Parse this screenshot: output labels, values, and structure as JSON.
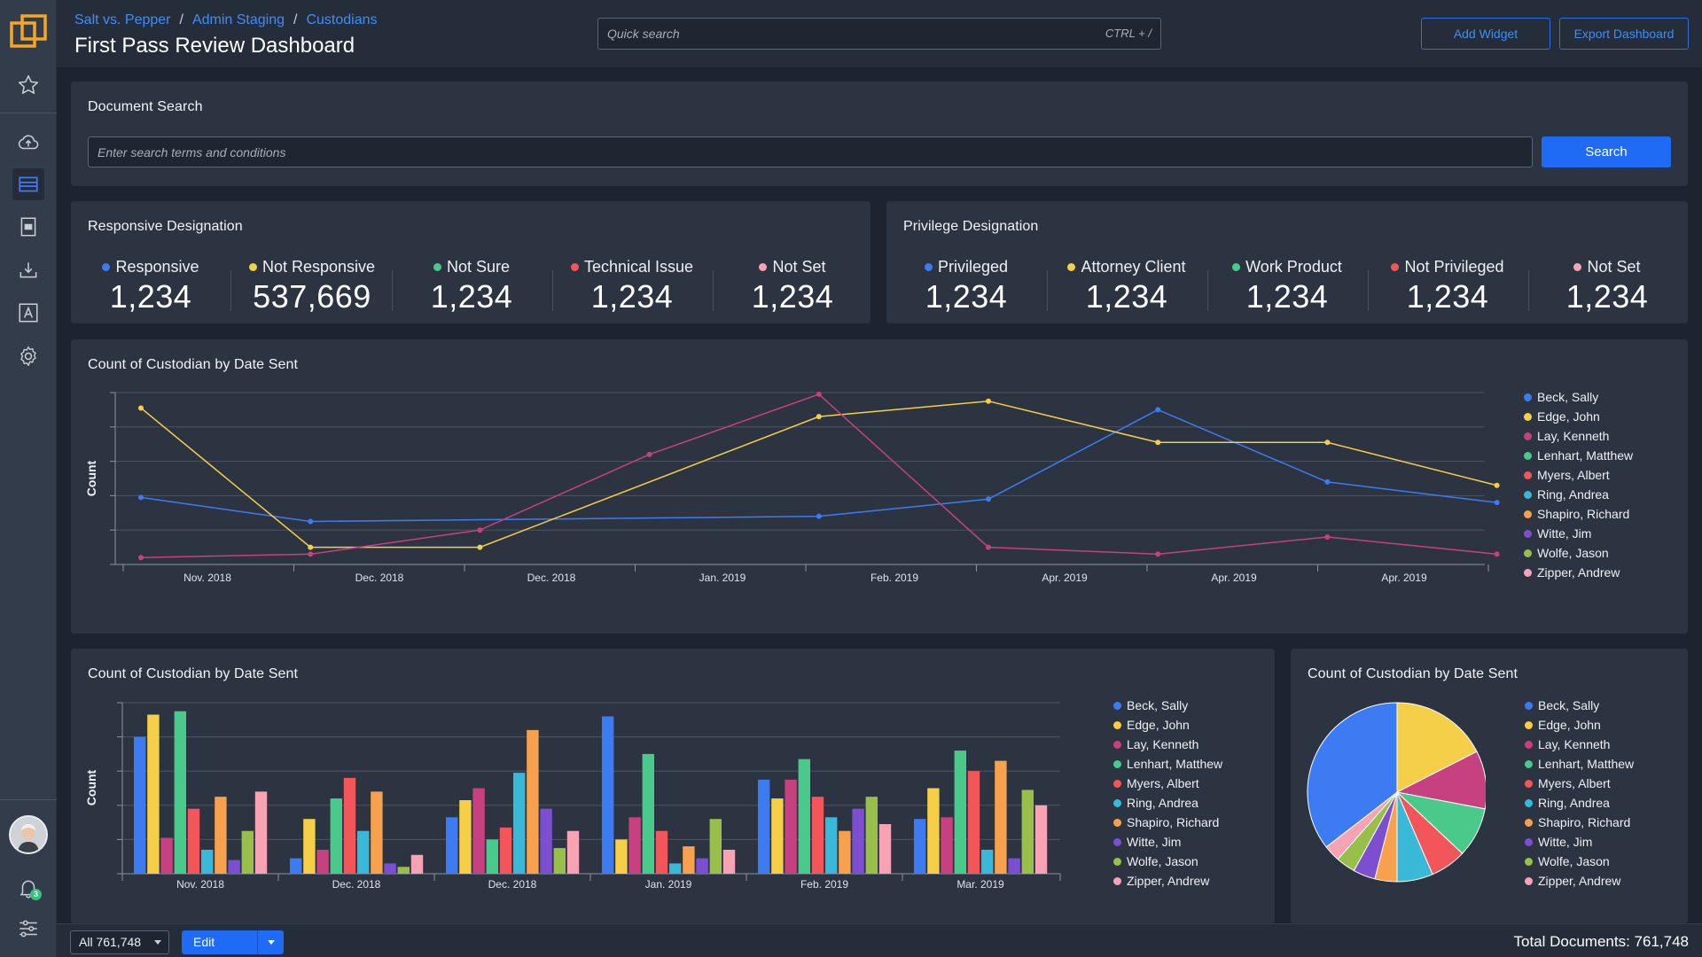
{
  "header": {
    "breadcrumb": [
      "Salt vs. Pepper",
      "Admin Staging",
      "Custodians"
    ],
    "title": "First Pass Review Dashboard",
    "quick_search_placeholder": "Quick search",
    "quick_search_shortcut": "CTRL + /",
    "add_widget_label": "Add Widget",
    "export_label": "Export Dashboard"
  },
  "document_search": {
    "title": "Document Search",
    "placeholder": "Enter search terms and conditions",
    "button_label": "Search"
  },
  "responsive": {
    "title": "Responsive Designation",
    "stats": [
      {
        "label": "Responsive",
        "value": "1,234",
        "color": "#3d7bf2"
      },
      {
        "label": "Not Responsive",
        "value": "537,669",
        "color": "#f5cf48"
      },
      {
        "label": "Not Sure",
        "value": "1,234",
        "color": "#49c98a"
      },
      {
        "label": "Technical Issue",
        "value": "1,234",
        "color": "#f2565a"
      },
      {
        "label": "Not Set",
        "value": "1,234",
        "color": "#f7a3b3"
      }
    ]
  },
  "privilege": {
    "title": "Privilege Designation",
    "stats": [
      {
        "label": "Privileged",
        "value": "1,234",
        "color": "#3d7bf2"
      },
      {
        "label": "Attorney Client",
        "value": "1,234",
        "color": "#f5cf48"
      },
      {
        "label": "Work Product",
        "value": "1,234",
        "color": "#49c98a"
      },
      {
        "label": "Not Privileged",
        "value": "1,234",
        "color": "#f2565a"
      },
      {
        "label": "Not Set",
        "value": "1,234",
        "color": "#f7a3b3"
      }
    ]
  },
  "legend": [
    {
      "name": "Beck, Sally",
      "color": "#3d7bf2"
    },
    {
      "name": "Edge, John",
      "color": "#f5cf48"
    },
    {
      "name": "Lay, Kenneth",
      "color": "#c7407f"
    },
    {
      "name": "Lenhart, Matthew",
      "color": "#49c98a"
    },
    {
      "name": "Myers, Albert",
      "color": "#f2565a"
    },
    {
      "name": "Ring, Andrea",
      "color": "#3ab8d8"
    },
    {
      "name": "Shapiro, Richard",
      "color": "#f7a04d"
    },
    {
      "name": "Witte, Jim",
      "color": "#7c4fd0"
    },
    {
      "name": "Wolfe, Jason",
      "color": "#97bf4a"
    },
    {
      "name": "Zipper, Andrew",
      "color": "#f7a3b3"
    }
  ],
  "chart_data": [
    {
      "type": "line",
      "title": "Count of Custodian by Date Sent",
      "ylabel": "Count",
      "xlabel": "",
      "categories": [
        "Nov. 2018",
        "Dec. 2018",
        "Dec. 2018",
        "Jan. 2019",
        "Feb. 2019",
        "Apr. 2019",
        "Apr. 2019",
        "Apr. 2019"
      ],
      "ylim": [
        0,
        100
      ],
      "x_points": [
        0,
        1,
        2,
        4,
        5,
        6,
        7,
        8
      ],
      "series": [
        {
          "name": "Beck, Sally",
          "color": "#3d7bf2",
          "x": [
            0,
            1,
            4,
            5,
            6,
            7,
            8
          ],
          "values": [
            39,
            25,
            28,
            38,
            90,
            48,
            36
          ]
        },
        {
          "name": "Edge, John",
          "color": "#f5cf48",
          "x": [
            0,
            1,
            2,
            4,
            5,
            6,
            7,
            8
          ],
          "values": [
            91,
            10,
            10,
            86,
            95,
            71,
            71,
            46
          ]
        },
        {
          "name": "Lay, Kenneth",
          "color": "#c7407f",
          "x": [
            0,
            1,
            2,
            3,
            4,
            5,
            6,
            7,
            8
          ],
          "values": [
            4,
            6,
            20,
            64,
            99,
            10,
            6,
            16,
            6
          ]
        }
      ]
    },
    {
      "type": "bar",
      "title": "Count of Custodian by Date Sent",
      "ylabel": "Count",
      "xlabel": "",
      "categories": [
        "Nov. 2018",
        "Dec. 2018",
        "Dec. 2018",
        "Jan. 2019",
        "Feb. 2019",
        "Mar. 2019"
      ],
      "ylim": [
        0,
        100
      ],
      "series": [
        {
          "name": "Beck, Sally",
          "color": "#3d7bf2",
          "values": [
            80,
            9,
            33,
            92,
            55,
            32
          ]
        },
        {
          "name": "Edge, John",
          "color": "#f5cf48",
          "values": [
            93,
            32,
            43,
            20,
            44,
            50
          ]
        },
        {
          "name": "Lay, Kenneth",
          "color": "#c7407f",
          "values": [
            21,
            14,
            50,
            33,
            55,
            33
          ]
        },
        {
          "name": "Lenhart, Matthew",
          "color": "#49c98a",
          "values": [
            95,
            44,
            20,
            70,
            67,
            72
          ]
        },
        {
          "name": "Myers, Albert",
          "color": "#f2565a",
          "values": [
            38,
            56,
            27,
            25,
            45,
            60
          ]
        },
        {
          "name": "Ring, Andrea",
          "color": "#3ab8d8",
          "values": [
            14,
            25,
            59,
            6,
            33,
            14
          ]
        },
        {
          "name": "Shapiro, Richard",
          "color": "#f7a04d",
          "values": [
            45,
            48,
            84,
            16,
            25,
            66
          ]
        },
        {
          "name": "Witte, Jim",
          "color": "#7c4fd0",
          "values": [
            8,
            6,
            38,
            9,
            38,
            9
          ]
        },
        {
          "name": "Wolfe, Jason",
          "color": "#97bf4a",
          "values": [
            25,
            4,
            15,
            32,
            45,
            49
          ]
        },
        {
          "name": "Zipper, Andrew",
          "color": "#f7a3b3",
          "values": [
            48,
            11,
            25,
            14,
            29,
            40
          ]
        }
      ]
    },
    {
      "type": "pie",
      "title": "Count of Custodian by Date Sent",
      "categories": [
        "Beck, Sally",
        "Edge, John",
        "Lay, Kenneth",
        "Lenhart, Matthew",
        "Myers, Albert",
        "Ring, Andrea",
        "Shapiro, Richard",
        "Witte, Jim",
        "Wolfe, Jason",
        "Zipper, Andrew"
      ],
      "values": [
        35.5,
        17.5,
        10.5,
        9,
        6.5,
        6.5,
        4,
        4,
        3.5,
        3
      ],
      "colors": [
        "#3d7bf2",
        "#f5cf48",
        "#c7407f",
        "#49c98a",
        "#f2565a",
        "#3ab8d8",
        "#f7a04d",
        "#7c4fd0",
        "#97bf4a",
        "#f7a3b3"
      ]
    }
  ],
  "footer": {
    "filter_value": "All 761,748",
    "edit_label": "Edit",
    "total_docs": "Total Documents: 761,748"
  },
  "sidebar": {
    "notification_count": "3",
    "items": [
      "favorites-icon",
      "upload-icon",
      "review-icon",
      "document-icon",
      "download-icon",
      "text-icon",
      "settings-icon"
    ]
  }
}
